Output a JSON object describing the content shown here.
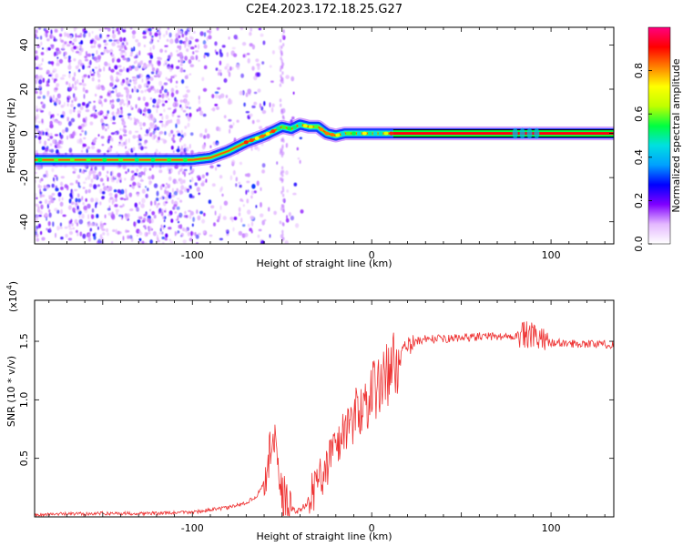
{
  "title": "C2E4.2023.172.18.25.G27",
  "chart_data": [
    {
      "type": "heatmap",
      "xlabel": "Height of straight line (km)",
      "ylabel": "Frequency (Hz)",
      "xlim": [
        -188,
        135
      ],
      "ylim": [
        -50,
        48
      ],
      "x_ticks": [
        "-100",
        "0",
        "100"
      ],
      "y_ticks": [
        "-40",
        "-20",
        "0",
        "20",
        "40"
      ],
      "ridge": {
        "x": [
          -188,
          -160,
          -130,
          -110,
          -100,
          -90,
          -80,
          -70,
          -60,
          -55,
          -50,
          -45,
          -40,
          -35,
          -30,
          -25,
          -20,
          -15,
          -10,
          -5,
          0,
          5,
          10,
          15,
          135
        ],
        "y": [
          -12,
          -12,
          -12,
          -12,
          -12,
          -11,
          -8,
          -4,
          -1,
          1,
          3,
          2,
          4,
          3,
          3,
          0,
          -1,
          0,
          0,
          0,
          0,
          0,
          0,
          0,
          0
        ]
      },
      "colorbar": {
        "label": "Normalized spectral amplitude",
        "range": [
          0,
          1
        ],
        "ticks": [
          "0.0",
          "0.2",
          "0.4",
          "0.6",
          "0.8"
        ],
        "colors": [
          "#ffffff",
          "#e4b8ff",
          "#8000ff",
          "#0000ff",
          "#00a0ff",
          "#00e0e0",
          "#00ff40",
          "#c0ff00",
          "#ffff00",
          "#ff8000",
          "#ff0000",
          "#ff0080"
        ]
      }
    },
    {
      "type": "line",
      "xlabel": "Height of straight line (km)",
      "ylabel": "SNR (10 * v/v)",
      "y_multiplier": "(x10",
      "y_multiplier_exp": "4",
      "xlim": [
        -188,
        135
      ],
      "ylim": [
        0,
        1.85
      ],
      "x_ticks": [
        "-100",
        "0",
        "100"
      ],
      "y_ticks": [
        "0.5",
        "1.0",
        "1.5"
      ],
      "color": "#ee3333",
      "series": {
        "x": [
          -188,
          -150,
          -120,
          -100,
          -90,
          -80,
          -70,
          -64,
          -60,
          -57,
          -55,
          -53,
          -50,
          -47,
          -43,
          -40,
          -35,
          -30,
          -25,
          -20,
          -15,
          -10,
          -5,
          0,
          5,
          10,
          15,
          20,
          25,
          30,
          40,
          50,
          60,
          70,
          75,
          80,
          85,
          88,
          92,
          95,
          100,
          110,
          120,
          135
        ],
        "y": [
          0.02,
          0.03,
          0.03,
          0.04,
          0.06,
          0.08,
          0.12,
          0.18,
          0.3,
          0.55,
          0.7,
          0.45,
          0.2,
          0.1,
          0.05,
          0.05,
          0.15,
          0.3,
          0.45,
          0.6,
          0.75,
          0.85,
          0.95,
          1.05,
          1.15,
          1.25,
          1.35,
          1.45,
          1.5,
          1.52,
          1.52,
          1.53,
          1.54,
          1.54,
          1.54,
          1.55,
          1.55,
          1.55,
          1.52,
          1.5,
          1.49,
          1.48,
          1.48,
          1.47
        ]
      }
    }
  ]
}
